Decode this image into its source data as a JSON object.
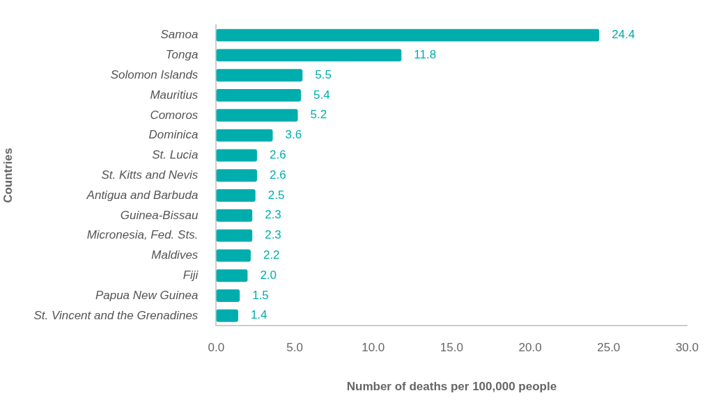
{
  "chart_data": {
    "type": "bar",
    "orientation": "horizontal",
    "xlabel": "Number of deaths per 100,000 people",
    "ylabel": "Countries",
    "categories": [
      "Samoa",
      "Tonga",
      "Solomon Islands",
      "Mauritius",
      "Comoros",
      "Dominica",
      "St. Lucia",
      "St. Kitts and Nevis",
      "Antigua and Barbuda",
      "Guinea-Bissau",
      "Micronesia, Fed. Sts.",
      "Maldives",
      "Fiji",
      "Papua New Guinea",
      "St. Vincent and the Grenadines"
    ],
    "values": [
      24.4,
      11.8,
      5.5,
      5.4,
      5.2,
      3.6,
      2.6,
      2.6,
      2.5,
      2.3,
      2.3,
      2.2,
      2.0,
      1.5,
      1.4
    ],
    "value_labels": [
      "24.4",
      "11.8",
      "5.5",
      "5.4",
      "5.2",
      "3.6",
      "2.6",
      "2.6",
      "2.5",
      "2.3",
      "2.3",
      "2.2",
      "2.0",
      "1.5",
      "1.4"
    ],
    "color": "#00adad",
    "grid": false,
    "legend": false,
    "xlim": [
      0,
      30
    ],
    "xticks": [
      {
        "value": 0,
        "label": "0.0"
      },
      {
        "value": 5,
        "label": "5.0"
      },
      {
        "value": 10,
        "label": "10.0"
      },
      {
        "value": 15,
        "label": "15.0"
      },
      {
        "value": 20,
        "label": "20.0"
      },
      {
        "value": 25,
        "label": "25.0"
      },
      {
        "value": 30,
        "label": "30.0"
      }
    ]
  }
}
